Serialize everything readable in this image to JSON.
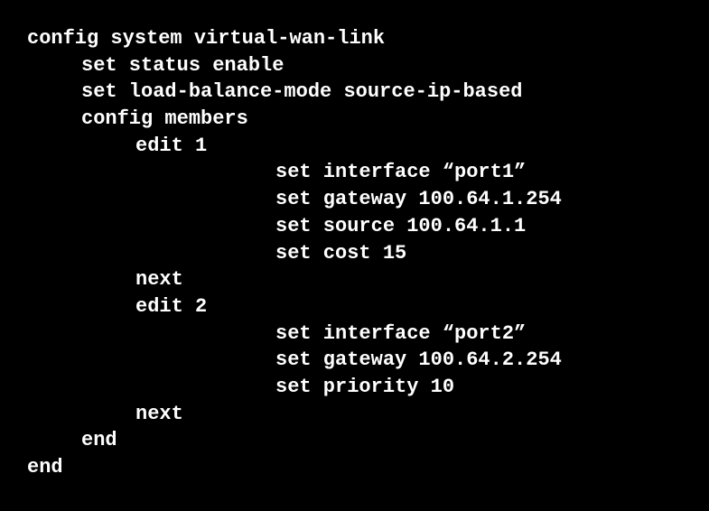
{
  "terminal": {
    "background_color": "#000000",
    "text_color": "#ffffff",
    "font_family": "Courier New",
    "font_size": 22,
    "font_weight": "bold",
    "lines": {
      "l0": "config system virtual-wan-link",
      "l1": "set status enable",
      "l2": "set load-balance-mode source-ip-based",
      "l3": "config members",
      "l4": "edit 1",
      "l5": "set interface “port1”",
      "l6": "set gateway 100.64.1.254",
      "l7": "set source 100.64.1.1",
      "l8": "set cost 15",
      "l9": "next",
      "l10": "edit 2",
      "l11": "set interface “port2”",
      "l12": "set gateway 100.64.2.254",
      "l13": "set priority 10",
      "l14": "next",
      "l15": "end",
      "l16": "end"
    }
  }
}
